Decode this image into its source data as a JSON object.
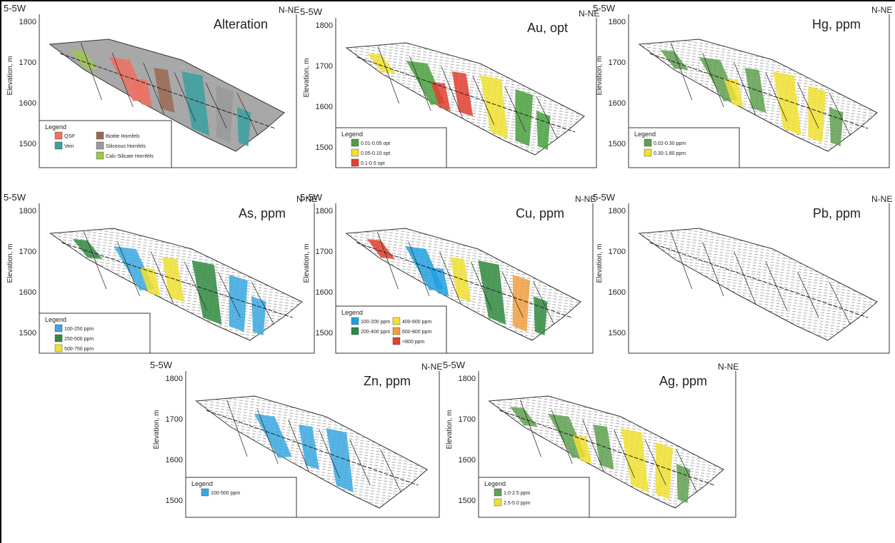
{
  "panels": [
    {
      "title": "Alteration",
      "left_label": "5-5W",
      "right_label": "N-NE",
      "y_axis_label": "Elevation, m",
      "yticks": [
        "1800",
        "1700",
        "1600",
        "1500"
      ],
      "legend": {
        "title": "Legend",
        "items": [
          {
            "label": "QSP",
            "color": "#f07060"
          },
          {
            "label": "Vein",
            "color": "#3aa0a0"
          },
          {
            "label": "Biotite Hornfels",
            "color": "#9a6a50"
          },
          {
            "label": "Siliceous Hornfels",
            "color": "#9a9a9a"
          },
          {
            "label": "Calc-Silicate Hornfels",
            "color": "#9cc850"
          }
        ]
      }
    },
    {
      "title": "Au, opt",
      "left_label": "5-5W",
      "right_label": "N-NE",
      "y_axis_label": "Elevation, m",
      "yticks": [
        "1800",
        "1700",
        "1600",
        "1500"
      ],
      "legend": {
        "title": "Legend",
        "items": [
          {
            "label": "0.01-0.05 opt",
            "color": "#4aa040"
          },
          {
            "label": "0.05-0.10 opt",
            "color": "#f0e030"
          },
          {
            "label": "0.1-0.5 opt",
            "color": "#e04030"
          }
        ]
      }
    },
    {
      "title": "Hg, ppm",
      "left_label": "5-5W",
      "right_label": "N-NE",
      "y_axis_label": "Elevation, m",
      "yticks": [
        "1800",
        "1700",
        "1600",
        "1500"
      ],
      "legend": {
        "title": "Legend",
        "items": [
          {
            "label": "0.02-0.30 ppm",
            "color": "#5fa050"
          },
          {
            "label": "0.30-1.80 ppm",
            "color": "#f0e030"
          }
        ]
      }
    },
    {
      "title": "As, ppm",
      "left_label": "5-5W",
      "right_label": "N-NE",
      "y_axis_label": "Elevation, m",
      "yticks": [
        "1800",
        "1700",
        "1600",
        "1500"
      ],
      "legend": {
        "title": "Legend",
        "items": [
          {
            "label": "100-250 ppm",
            "color": "#3aa8e0"
          },
          {
            "label": "250-500 ppm",
            "color": "#2f8a40"
          },
          {
            "label": "500-750 ppm",
            "color": "#f0e030"
          }
        ]
      }
    },
    {
      "title": "Cu, ppm",
      "left_label": "5-5W",
      "right_label": "N-NE",
      "y_axis_label": "Elevation, m",
      "yticks": [
        "1800",
        "1700",
        "1600",
        "1500"
      ],
      "legend": {
        "title": "Legend",
        "items": [
          {
            "label": "100-200 ppm",
            "color": "#20a0e0"
          },
          {
            "label": "200-400 ppm",
            "color": "#2f8a40"
          },
          {
            "label": "400-600 ppm",
            "color": "#f0e030"
          },
          {
            "label": "600-800 ppm",
            "color": "#f0a040"
          },
          {
            "label": ">800 ppm",
            "color": "#e04030"
          }
        ]
      }
    },
    {
      "title": "Pb, ppm",
      "left_label": "5-5W",
      "right_label": "N-NE",
      "y_axis_label": "Elevation, m",
      "yticks": [
        "1800",
        "1700",
        "1600",
        "1500"
      ]
    },
    {
      "title": "Zn, ppm",
      "left_label": "5-5W",
      "right_label": "N-NE",
      "y_axis_label": "Elevation, m",
      "yticks": [
        "1800",
        "1700",
        "1600",
        "1500"
      ],
      "legend": {
        "title": "Legend",
        "items": [
          {
            "label": "100-500 ppm",
            "color": "#3aa8e0"
          }
        ]
      }
    },
    {
      "title": "Ag, ppm",
      "left_label": "5-5W",
      "right_label": "N-NE",
      "y_axis_label": "Elevation, m",
      "yticks": [
        "1800",
        "1700",
        "1600",
        "1500"
      ],
      "legend": {
        "title": "Legend",
        "items": [
          {
            "label": "1.0-2.5 ppm",
            "color": "#5fa050"
          },
          {
            "label": "2.5-5.0 ppm",
            "color": "#f0e030"
          }
        ]
      }
    }
  ]
}
